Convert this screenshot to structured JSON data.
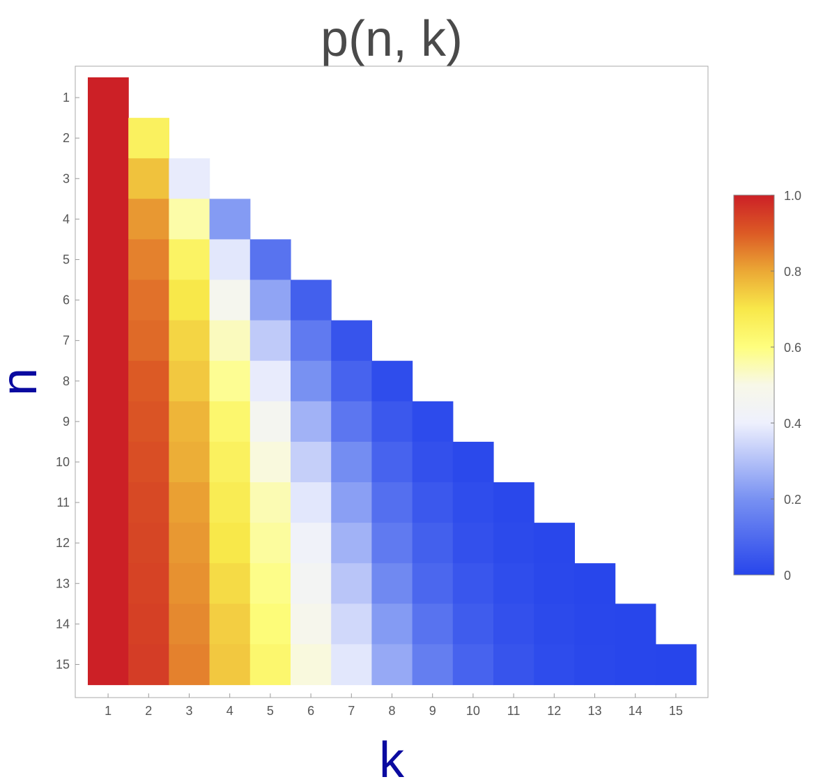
{
  "chart_data": {
    "type": "heatmap",
    "title": "p(n, k)",
    "xlabel": "k",
    "ylabel": "n",
    "x_categories": [
      "1",
      "2",
      "3",
      "4",
      "5",
      "6",
      "7",
      "8",
      "9",
      "10",
      "11",
      "12",
      "13",
      "14",
      "15"
    ],
    "y_categories": [
      "1",
      "2",
      "3",
      "4",
      "5",
      "6",
      "7",
      "8",
      "9",
      "10",
      "11",
      "12",
      "13",
      "14",
      "15"
    ],
    "rows": [
      [
        1.0
      ],
      [
        1.0,
        0.66
      ],
      [
        1.0,
        0.76,
        0.39
      ],
      [
        1.0,
        0.82,
        0.56,
        0.22
      ],
      [
        1.0,
        0.85,
        0.65,
        0.38,
        0.12
      ],
      [
        1.0,
        0.87,
        0.7,
        0.47,
        0.24,
        0.07
      ],
      [
        1.0,
        0.88,
        0.73,
        0.54,
        0.32,
        0.14,
        0.04
      ],
      [
        1.0,
        0.9,
        0.75,
        0.58,
        0.39,
        0.2,
        0.08,
        0.02
      ],
      [
        1.0,
        0.91,
        0.78,
        0.63,
        0.46,
        0.27,
        0.13,
        0.05,
        0.015
      ],
      [
        1.0,
        0.92,
        0.79,
        0.66,
        0.51,
        0.33,
        0.19,
        0.08,
        0.03,
        0.01
      ],
      [
        1.0,
        0.93,
        0.81,
        0.68,
        0.55,
        0.38,
        0.23,
        0.11,
        0.05,
        0.02,
        0.008
      ],
      [
        1.0,
        0.935,
        0.82,
        0.7,
        0.57,
        0.42,
        0.27,
        0.14,
        0.07,
        0.03,
        0.012,
        0.005
      ],
      [
        1.0,
        0.94,
        0.83,
        0.72,
        0.59,
        0.45,
        0.31,
        0.18,
        0.09,
        0.045,
        0.02,
        0.008,
        0.003
      ],
      [
        1.0,
        0.945,
        0.84,
        0.74,
        0.61,
        0.48,
        0.35,
        0.22,
        0.12,
        0.06,
        0.03,
        0.012,
        0.004,
        0.002
      ],
      [
        1.0,
        0.95,
        0.85,
        0.75,
        0.63,
        0.51,
        0.38,
        0.25,
        0.15,
        0.08,
        0.04,
        0.018,
        0.007,
        0.003,
        0.001
      ]
    ],
    "colorbar": {
      "range": [
        0,
        1
      ],
      "ticks": [
        "0",
        "0.2",
        "0.4",
        "0.6",
        "0.8",
        "1.0"
      ],
      "tick_values": [
        0,
        0.2,
        0.4,
        0.6,
        0.8,
        1.0
      ],
      "scheme": "blue-white-yellow-red"
    },
    "colors": {
      "stops": [
        [
          0.0,
          "#2745eb"
        ],
        [
          0.2,
          "#7891f2"
        ],
        [
          0.4,
          "#eef0fd"
        ],
        [
          0.5,
          "#f8f8e8"
        ],
        [
          0.6,
          "#fefe7e"
        ],
        [
          0.7,
          "#f8e84a"
        ],
        [
          0.8,
          "#eba835"
        ],
        [
          0.9,
          "#dc5a25"
        ],
        [
          1.0,
          "#cc2026"
        ]
      ]
    },
    "grid": false,
    "legend": "right"
  }
}
